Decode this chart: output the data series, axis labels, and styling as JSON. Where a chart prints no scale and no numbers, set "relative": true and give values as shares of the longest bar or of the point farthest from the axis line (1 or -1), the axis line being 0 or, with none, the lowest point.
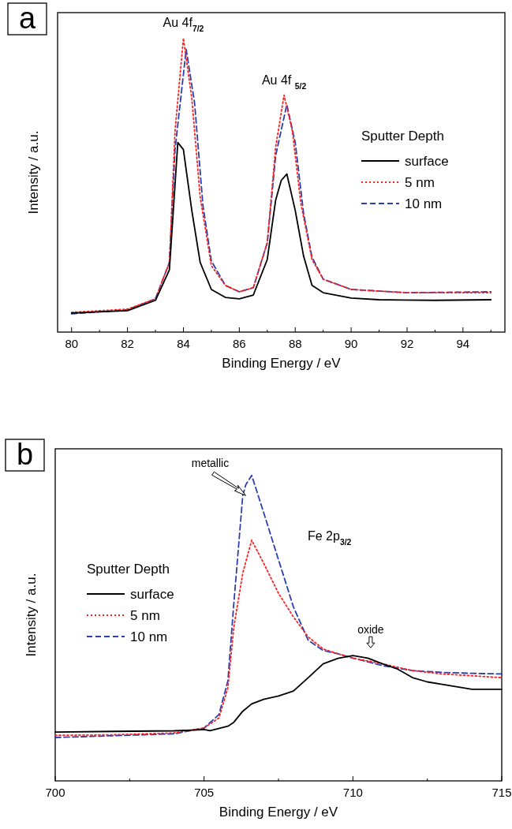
{
  "chart_data": [
    {
      "type": "line",
      "relative": true,
      "xlabel": "Binding Energy / eV",
      "ylabel": "Intensity / a.u.",
      "legend_title": "Sputter Depth",
      "legend": "right",
      "xlim": [
        79.5,
        95.5
      ],
      "xticks": [
        80,
        {
          "value": 81,
          "label": null
        },
        82,
        {
          "value": 83,
          "label": null
        },
        84,
        {
          "value": 85,
          "label": null
        },
        86,
        {
          "value": 87,
          "label": null
        },
        88,
        {
          "value": 89,
          "label": null
        },
        90,
        {
          "value": 91,
          "label": null
        },
        92,
        {
          "value": 93,
          "label": null
        },
        94,
        {
          "value": 95,
          "label": null
        }
      ],
      "annotations": [
        "a",
        {
          "text": "Au 4f$_{7/2}$",
          "x": 84,
          "y": 1
        },
        {
          "text": "Au 4f $_{5/2}$",
          "x": 87.6,
          "y": 0.806
        }
      ],
      "series": [
        {
          "name": "surface",
          "color": "#000000",
          "line_style": "solid",
          "x": [
            80,
            82,
            83,
            83.5,
            83.8,
            84.0,
            84.3,
            84.6,
            85,
            85.5,
            86,
            86.5,
            87,
            87.3,
            87.5,
            87.7,
            88,
            88.3,
            88.6,
            89,
            90,
            91,
            93,
            95
          ],
          "values": [
            0.065,
            0.073,
            0.108,
            0.212,
            0.645,
            0.621,
            0.414,
            0.237,
            0.145,
            0.118,
            0.113,
            0.126,
            0.247,
            0.449,
            0.516,
            0.538,
            0.414,
            0.258,
            0.159,
            0.134,
            0.116,
            0.11,
            0.108,
            0.11
          ]
        },
        {
          "name": "5 nm",
          "color": "#ff2020",
          "line_style": "dotted",
          "x": [
            80,
            82,
            83,
            83.5,
            83.7,
            84.0,
            84.3,
            84.6,
            85,
            85.5,
            86,
            86.5,
            87,
            87.3,
            87.6,
            87.9,
            88.2,
            88.6,
            89,
            90,
            92,
            95
          ],
          "values": [
            0.067,
            0.078,
            0.113,
            0.237,
            0.683,
            1,
            0.796,
            0.46,
            0.226,
            0.159,
            0.137,
            0.151,
            0.304,
            0.629,
            0.806,
            0.683,
            0.438,
            0.247,
            0.18,
            0.145,
            0.134,
            0.134
          ]
        },
        {
          "name": "10 nm",
          "color": "#2b3fae",
          "line_style": "dashed",
          "x": [
            80,
            82,
            83,
            83.5,
            83.7,
            84.1,
            84.4,
            84.7,
            85,
            85.5,
            86,
            86.5,
            87,
            87.3,
            87.7,
            88.0,
            88.3,
            88.6,
            89,
            90,
            92,
            95
          ],
          "values": [
            0.062,
            0.076,
            0.113,
            0.237,
            0.62,
            0.962,
            0.78,
            0.43,
            0.242,
            0.159,
            0.137,
            0.151,
            0.304,
            0.6,
            0.774,
            0.645,
            0.403,
            0.255,
            0.18,
            0.145,
            0.134,
            0.137
          ]
        }
      ]
    },
    {
      "type": "line",
      "relative": true,
      "xlabel": "Binding Energy / eV",
      "ylabel": "Intensity / a.u.",
      "legend_title": "Sputter Depth",
      "legend": "left",
      "xlim": [
        700,
        715
      ],
      "xticks": [
        700,
        {
          "value": 702.5,
          "label": null
        },
        705,
        {
          "value": 707.5,
          "label": null
        },
        710,
        {
          "value": 712.5,
          "label": null
        },
        715
      ],
      "annotations": [
        "b",
        {
          "text": "metallic",
          "x": 706.4,
          "y": 0.934
        },
        "Fe 2p$_{3/2}$",
        {
          "text": "oxide",
          "x": 710.2,
          "y": 0.41
        }
      ],
      "series": [
        {
          "name": "surface",
          "color": "#000000",
          "line_style": "solid",
          "x": [
            700,
            702,
            704,
            705,
            705.2,
            705.8,
            706,
            706.3,
            706.6,
            707,
            707.5,
            708,
            708.5,
            709,
            709.5,
            710,
            710.5,
            711,
            711.5,
            712,
            712.5,
            713,
            714,
            715
          ],
          "values": [
            0.16,
            0.162,
            0.164,
            0.168,
            0.164,
            0.179,
            0.192,
            0.228,
            0.252,
            0.267,
            0.278,
            0.294,
            0.338,
            0.383,
            0.401,
            0.41,
            0.402,
            0.383,
            0.366,
            0.338,
            0.324,
            0.316,
            0.3,
            0.3
          ]
        },
        {
          "name": "5 nm",
          "color": "#ff2020",
          "line_style": "dotted",
          "x": [
            700,
            702,
            704,
            705,
            705.5,
            705.8,
            706,
            706.3,
            706.6,
            707,
            707.5,
            708,
            708.5,
            709,
            709.5,
            710,
            711,
            712,
            713,
            714,
            715
          ],
          "values": [
            0.149,
            0.151,
            0.157,
            0.173,
            0.206,
            0.305,
            0.504,
            0.68,
            0.788,
            0.713,
            0.614,
            0.537,
            0.471,
            0.432,
            0.416,
            0.402,
            0.383,
            0.361,
            0.35,
            0.344,
            0.338
          ]
        },
        {
          "name": "10 nm",
          "color": "#2b3fae",
          "line_style": "dashed",
          "x": [
            700,
            702,
            704,
            705,
            705.5,
            705.8,
            706,
            706.3,
            706.4,
            706.6,
            707,
            707.5,
            708,
            708.5,
            709,
            709.5,
            710,
            711,
            712,
            713,
            714,
            715
          ],
          "values": [
            0.142,
            0.148,
            0.154,
            0.173,
            0.217,
            0.327,
            0.581,
            0.934,
            0.969,
            1,
            0.879,
            0.724,
            0.57,
            0.46,
            0.427,
            0.416,
            0.402,
            0.377,
            0.361,
            0.355,
            0.352,
            0.35
          ]
        }
      ]
    }
  ]
}
